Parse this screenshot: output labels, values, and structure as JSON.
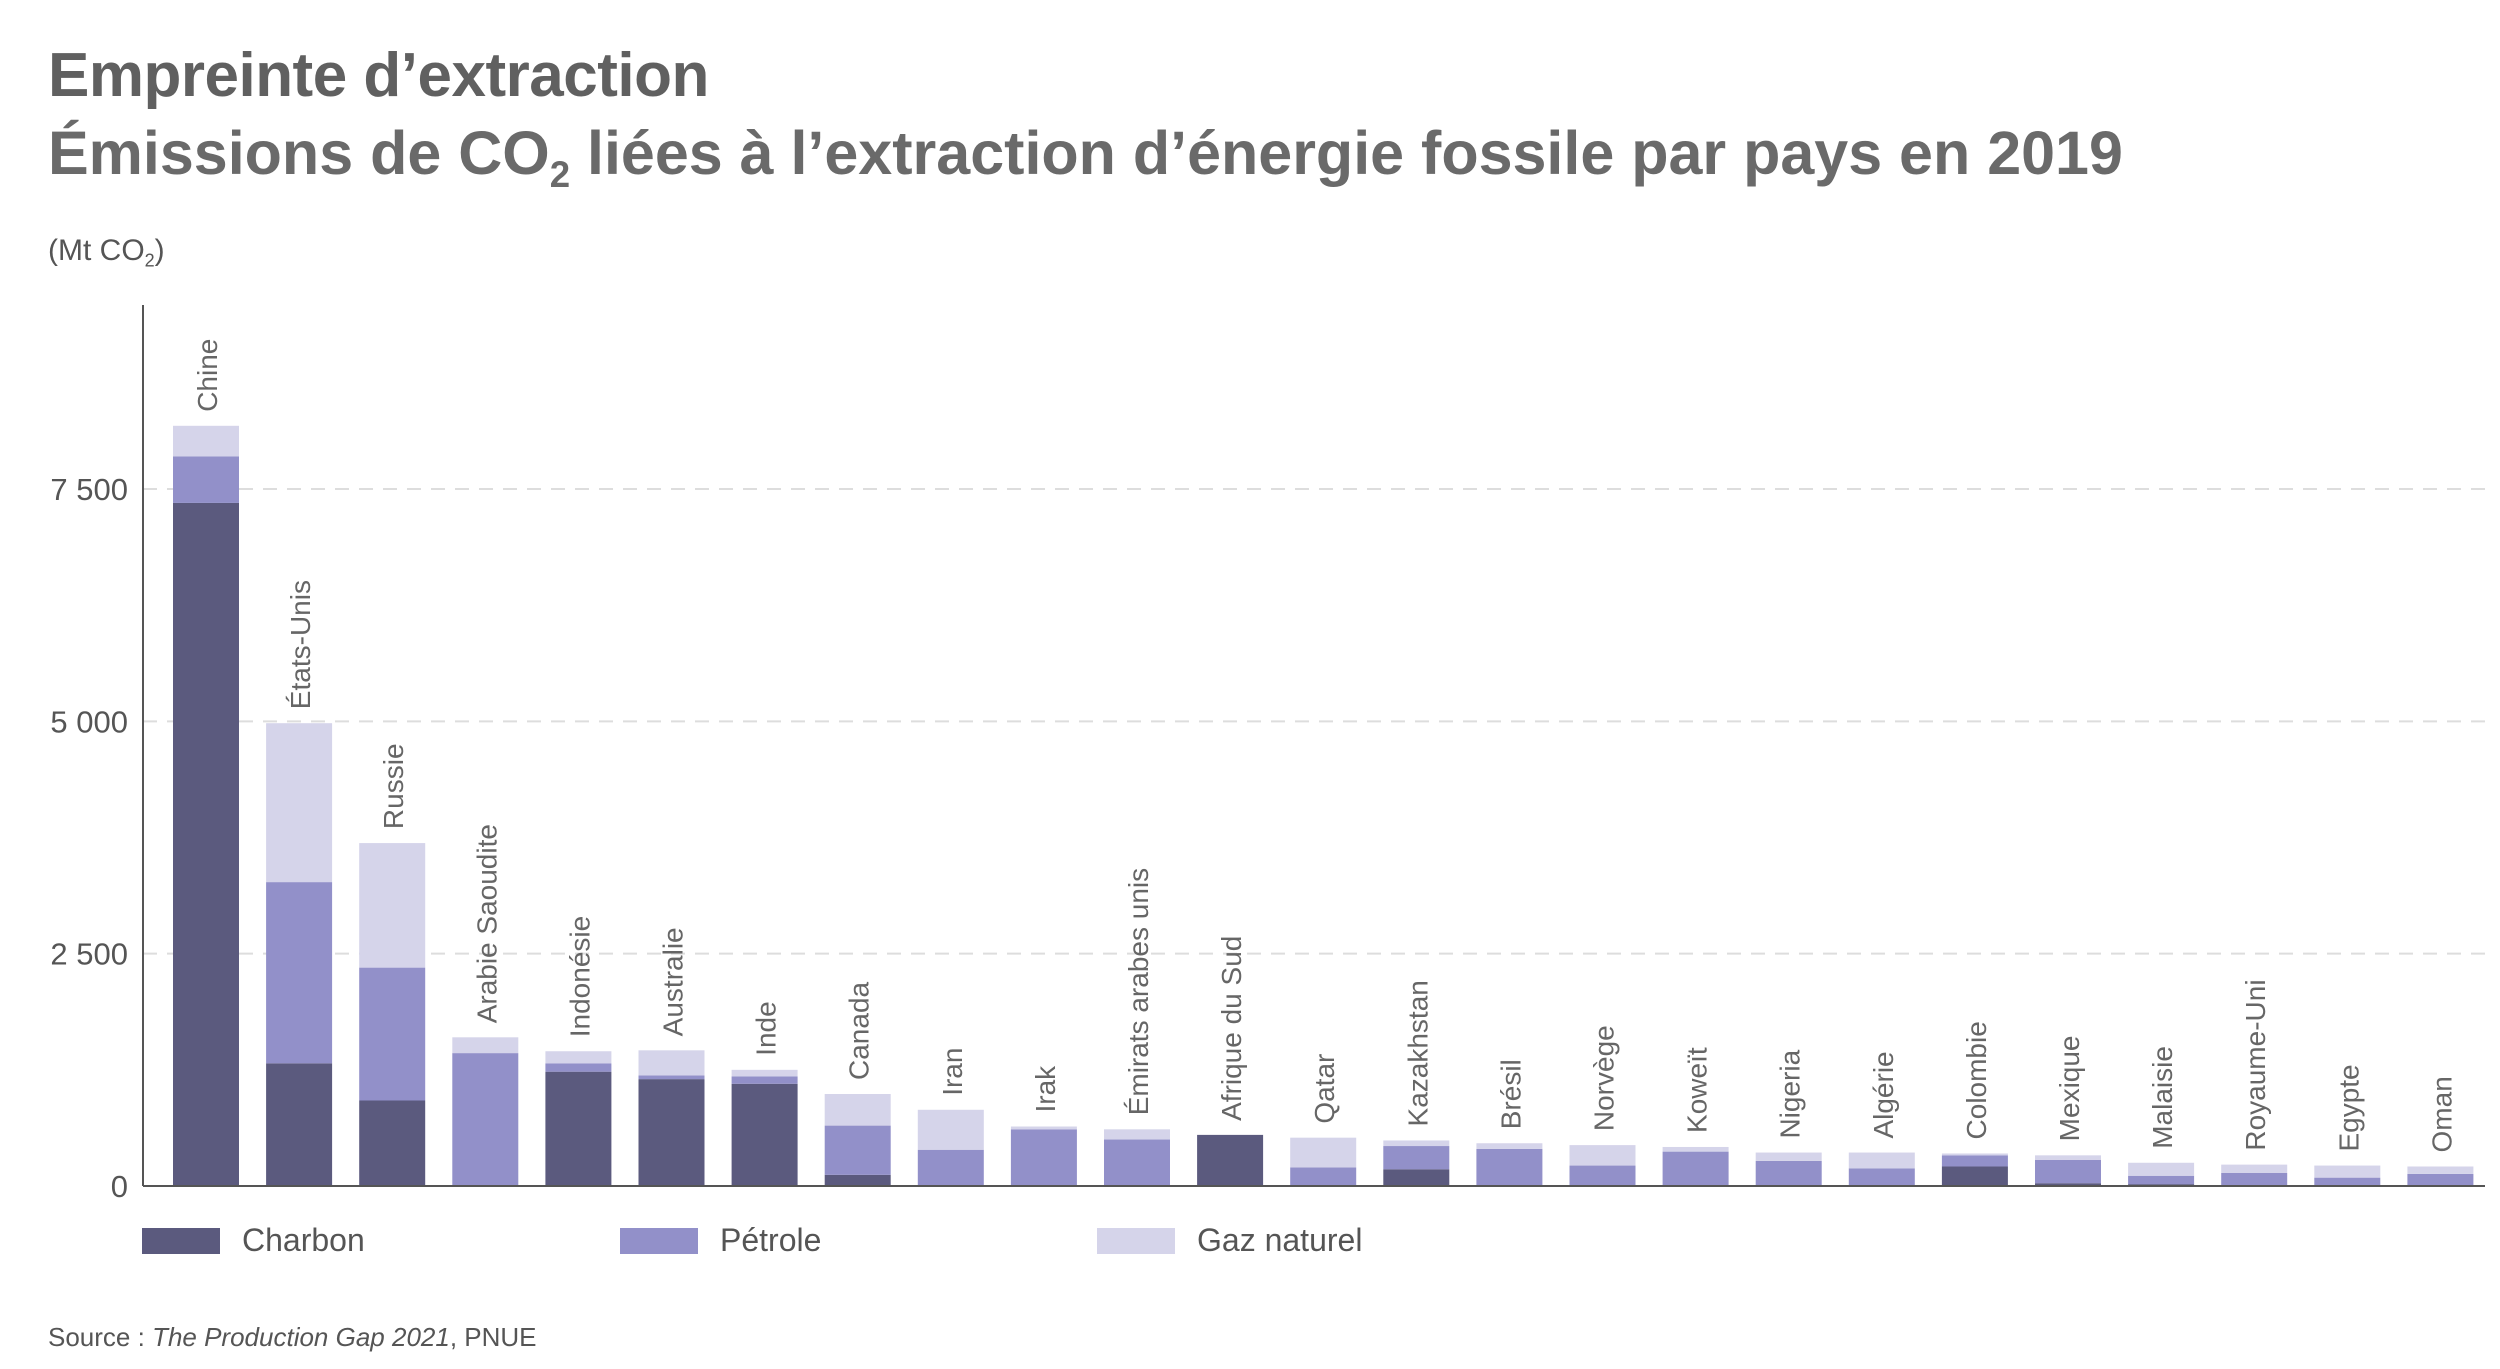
{
  "header": {
    "title": "Empreinte d’extraction",
    "subtitle_main": "Émissions de CO",
    "subtitle_sub": "2",
    "subtitle_rest": " liées à l’extraction d’énergie fossile par pays en 2019"
  },
  "unit": {
    "prefix": "(Mt CO",
    "sub": "2",
    "suffix": ")"
  },
  "legend": [
    {
      "label": "Charbon",
      "color": "#5b5a7e"
    },
    {
      "label": "Pétrole",
      "color": "#9290c9"
    },
    {
      "label": "Gaz naturel",
      "color": "#d5d4ea"
    }
  ],
  "source": {
    "prefix": "Source : ",
    "work": "The Production Gap 2021",
    "suffix": ", PNUE"
  },
  "chart_data": {
    "type": "bar",
    "stacked": true,
    "ylabel": "(Mt CO2)",
    "ylim": [
      0,
      9500
    ],
    "yticks": [
      0,
      2500,
      5000,
      7500
    ],
    "ytick_labels": [
      "0",
      "2 500",
      "5 000",
      "7 500"
    ],
    "grid": "horizontal dashed",
    "legend_position": "bottom-left",
    "categories": [
      "Chine",
      "États-Unis",
      "Russie",
      "Arabie Saoudite",
      "Indonésie",
      "Australie",
      "Inde",
      "Canada",
      "Iran",
      "Irak",
      "Émirats arabes unis",
      "Afrique du Sud",
      "Qatar",
      "Kazakhstan",
      "Brésil",
      "Norvège",
      "Koweït",
      "Nigeria",
      "Algérie",
      "Colombie",
      "Mexique",
      "Malaisie",
      "Royaume-Uni",
      "Egypte",
      "Oman"
    ],
    "series": [
      {
        "name": "Charbon",
        "color": "#5b5a7e",
        "values": [
          7350,
          1320,
          920,
          0,
          1230,
          1150,
          1100,
          120,
          0,
          0,
          0,
          550,
          0,
          180,
          0,
          0,
          0,
          0,
          0,
          210,
          30,
          20,
          10,
          10,
          0
        ]
      },
      {
        "name": "Pétrole",
        "color": "#9290c9",
        "values": [
          500,
          1950,
          1430,
          1430,
          90,
          40,
          80,
          530,
          390,
          610,
          500,
          0,
          200,
          250,
          400,
          220,
          370,
          270,
          190,
          120,
          250,
          90,
          130,
          80,
          130
        ]
      },
      {
        "name": "Gaz naturel",
        "color": "#d5d4ea",
        "values": [
          330,
          1710,
          1340,
          170,
          130,
          270,
          70,
          340,
          430,
          30,
          110,
          0,
          320,
          60,
          60,
          220,
          50,
          90,
          170,
          20,
          50,
          140,
          90,
          130,
          80
        ]
      }
    ]
  }
}
